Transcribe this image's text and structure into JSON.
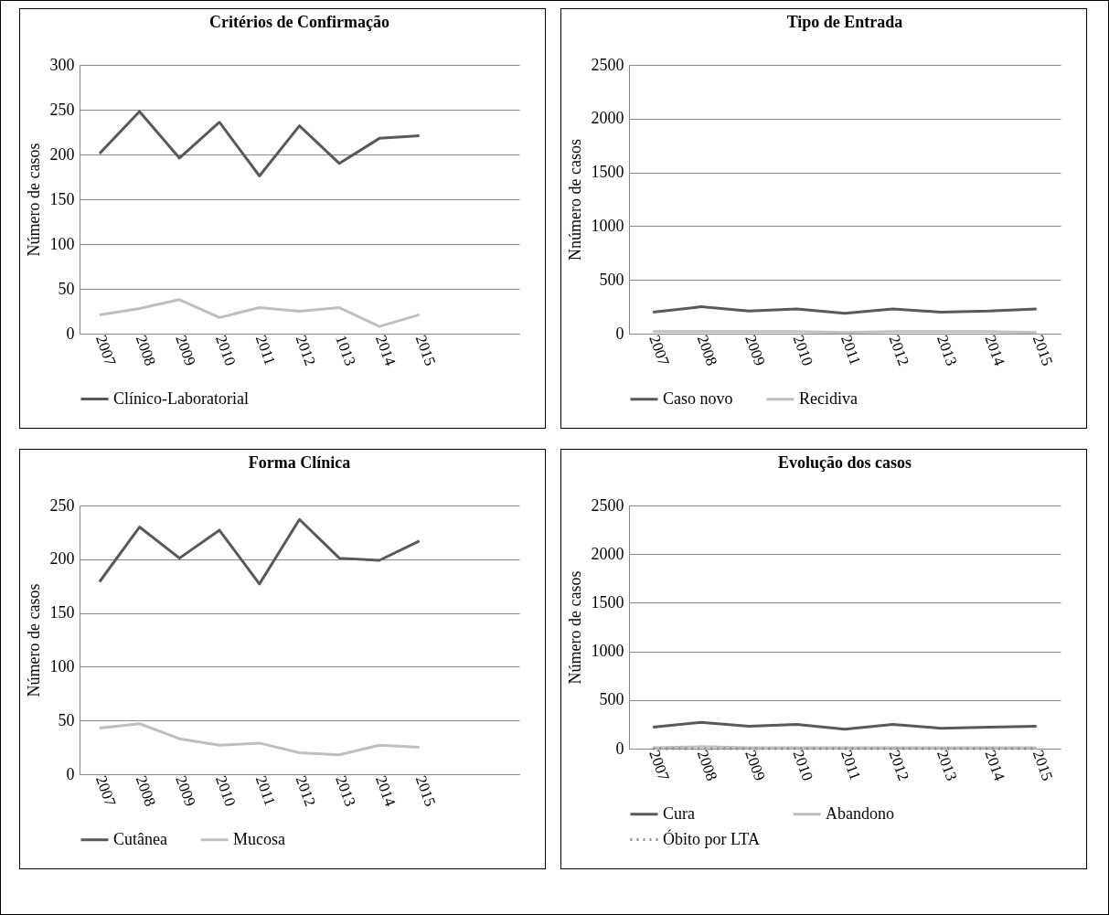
{
  "chart_data": [
    {
      "type": "line",
      "title": "Critérios de Confirmação",
      "ylabel": "Número de casos",
      "categories": [
        "2007",
        "2008",
        "2009",
        "2010",
        "2011",
        "2012",
        "1013",
        "2014",
        "2015",
        null,
        null
      ],
      "ylim": [
        0,
        300
      ],
      "yticks": [
        0,
        50,
        100,
        150,
        200,
        250,
        300
      ],
      "grid": "y",
      "legend": "bottom",
      "series": [
        {
          "name": "Clínico-Laboratorial",
          "color": "#595959",
          "values": [
            201,
            248,
            196,
            236,
            176,
            232,
            190,
            218,
            221,
            null,
            null
          ]
        },
        {
          "color": "#bfbfbf",
          "values": [
            21,
            28,
            38,
            18,
            29,
            25,
            29,
            8,
            21,
            null,
            null
          ]
        }
      ]
    },
    {
      "type": "line",
      "title": "Tipo de Entrada",
      "ylabel": "Nnúmero de casos",
      "categories": [
        "2007",
        "2008",
        "2009",
        "2010",
        "2011",
        "2012",
        "2013",
        "2014",
        "2015"
      ],
      "ylim": [
        0,
        2500
      ],
      "yticks": [
        0,
        500,
        1000,
        1500,
        2000,
        2500
      ],
      "grid": "y",
      "legend": "bottom",
      "series": [
        {
          "name": "Caso novo",
          "color": "#595959",
          "values": [
            200,
            250,
            210,
            230,
            190,
            230,
            200,
            210,
            230
          ]
        },
        {
          "name": "Recidiva",
          "color": "#bfbfbf",
          "values": [
            20,
            20,
            20,
            20,
            10,
            20,
            20,
            20,
            10
          ]
        }
      ]
    },
    {
      "type": "line",
      "title": "Forma Clínica",
      "ylabel": "Número de casos",
      "categories": [
        "2007",
        "2008",
        "2009",
        "2010",
        "2011",
        "2012",
        "2013",
        "2014",
        "2015",
        null,
        null
      ],
      "ylim": [
        0,
        250
      ],
      "yticks": [
        0,
        50,
        100,
        150,
        200,
        250
      ],
      "grid": "y",
      "legend": "bottom",
      "series": [
        {
          "name": "Cutânea",
          "color": "#595959",
          "values": [
            179,
            230,
            201,
            227,
            177,
            237,
            201,
            199,
            217,
            null,
            null
          ]
        },
        {
          "name": "Mucosa",
          "color": "#bfbfbf",
          "values": [
            43,
            47,
            33,
            27,
            29,
            20,
            18,
            27,
            25,
            null,
            null
          ]
        }
      ]
    },
    {
      "type": "line",
      "title": "Evolução dos casos",
      "ylabel": "Número de casos",
      "categories": [
        "2007",
        "2008",
        "2009",
        "2010",
        "2011",
        "2012",
        "2013",
        "2014",
        "2015"
      ],
      "ylim": [
        0,
        2500
      ],
      "yticks": [
        0,
        500,
        1000,
        1500,
        2000,
        2500
      ],
      "grid": "y",
      "legend": "bottom",
      "series": [
        {
          "name": "Cura",
          "color": "#595959",
          "values": [
            220,
            270,
            230,
            250,
            200,
            250,
            210,
            220,
            230
          ]
        },
        {
          "name": "Abandono",
          "color": "#bfbfbf",
          "values": [
            10,
            20,
            10,
            10,
            10,
            10,
            10,
            10,
            10
          ]
        },
        {
          "name": "Óbito por LTA",
          "color": "#8c8c8c",
          "line_style": "dotted",
          "values": [
            0,
            0,
            0,
            0,
            0,
            0,
            0,
            0,
            0
          ]
        }
      ]
    }
  ]
}
